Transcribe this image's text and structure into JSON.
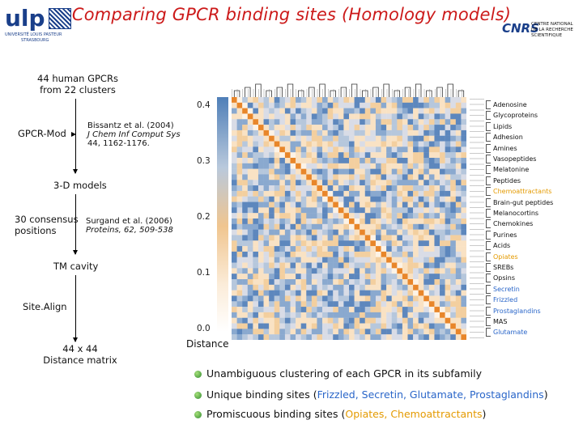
{
  "header": {
    "title": "Comparing GPCR binding sites (Homology models)",
    "ulp_logo_text": "ulp",
    "ulp_subtext_1": "UNIVERSITÉ LOUIS PASTEUR",
    "ulp_subtext_2": "STRASBOURG",
    "cnrs_logo_text": "CNRS",
    "cnrs_subtext_1": "CENTRE NATIONAL",
    "cnrs_subtext_2": "DE LA RECHERCHE",
    "cnrs_subtext_3": "SCIENTIFIQUE"
  },
  "workflow": {
    "step1_line1": "44 human GPCRs",
    "step1_line2": "from 22 clusters",
    "gpcr_mod": "GPCR-Mod",
    "ref1_line1": "Bissantz et al. (2004)",
    "ref1_line2": "J Chem Inf Comput Sys",
    "ref1_line3": "44, 1162-1176.",
    "step2": "3-D models",
    "consensus_line1": "30 consensus",
    "consensus_line2": "positions",
    "ref2_line1": "Surgand et al. (2006)",
    "ref2_line2": "Proteins, 62, 509-538",
    "step3": "TM cavity",
    "sitealign": "Site.Align",
    "step4_line1": "44 x 44",
    "step4_line2": "Distance matrix"
  },
  "colorbar": {
    "ticks": [
      "0.4",
      "0.3",
      "0.2",
      "0.1",
      "0.0"
    ],
    "label": "Distance",
    "colors": {
      "high": "#4f7fb8",
      "mid": "#f0c58f",
      "low": "#ffffff"
    }
  },
  "families": [
    {
      "name": "Adenosine",
      "color": "#111111"
    },
    {
      "name": "Glycoproteins",
      "color": "#111111"
    },
    {
      "name": "Lipids",
      "color": "#111111"
    },
    {
      "name": "Adhesion",
      "color": "#111111"
    },
    {
      "name": "Amines",
      "color": "#111111"
    },
    {
      "name": "Vasopeptides",
      "color": "#111111"
    },
    {
      "name": "Melatonine",
      "color": "#111111"
    },
    {
      "name": "Peptides",
      "color": "#111111"
    },
    {
      "name": "Chemoattractants",
      "color": "#e49a00"
    },
    {
      "name": "Brain-gut peptides",
      "color": "#111111"
    },
    {
      "name": "Melanocortins",
      "color": "#111111"
    },
    {
      "name": "Chemokines",
      "color": "#111111"
    },
    {
      "name": "Purines",
      "color": "#111111"
    },
    {
      "name": "Acids",
      "color": "#111111"
    },
    {
      "name": "Opiates",
      "color": "#e49a00"
    },
    {
      "name": "SREBs",
      "color": "#111111"
    },
    {
      "name": "Opsins",
      "color": "#111111"
    },
    {
      "name": "Secretin",
      "color": "#2a66c9"
    },
    {
      "name": "Frizzled",
      "color": "#2a66c9"
    },
    {
      "name": "Prostaglandins",
      "color": "#2a66c9"
    },
    {
      "name": "MAS",
      "color": "#111111"
    },
    {
      "name": "Glutamate",
      "color": "#2a66c9"
    }
  ],
  "bullets": {
    "b1": "Unambiguous clustering of each GPCR in its subfamily",
    "b2_prefix": "Unique binding sites (",
    "b2_hl": "Frizzled, Secretin, Glutamate, Prostaglandins",
    "b2_suffix": ")",
    "b3_prefix": "Promiscuous binding sites (",
    "b3_hl": "Opiates, Chemoattractants",
    "b3_suffix": ")"
  }
}
